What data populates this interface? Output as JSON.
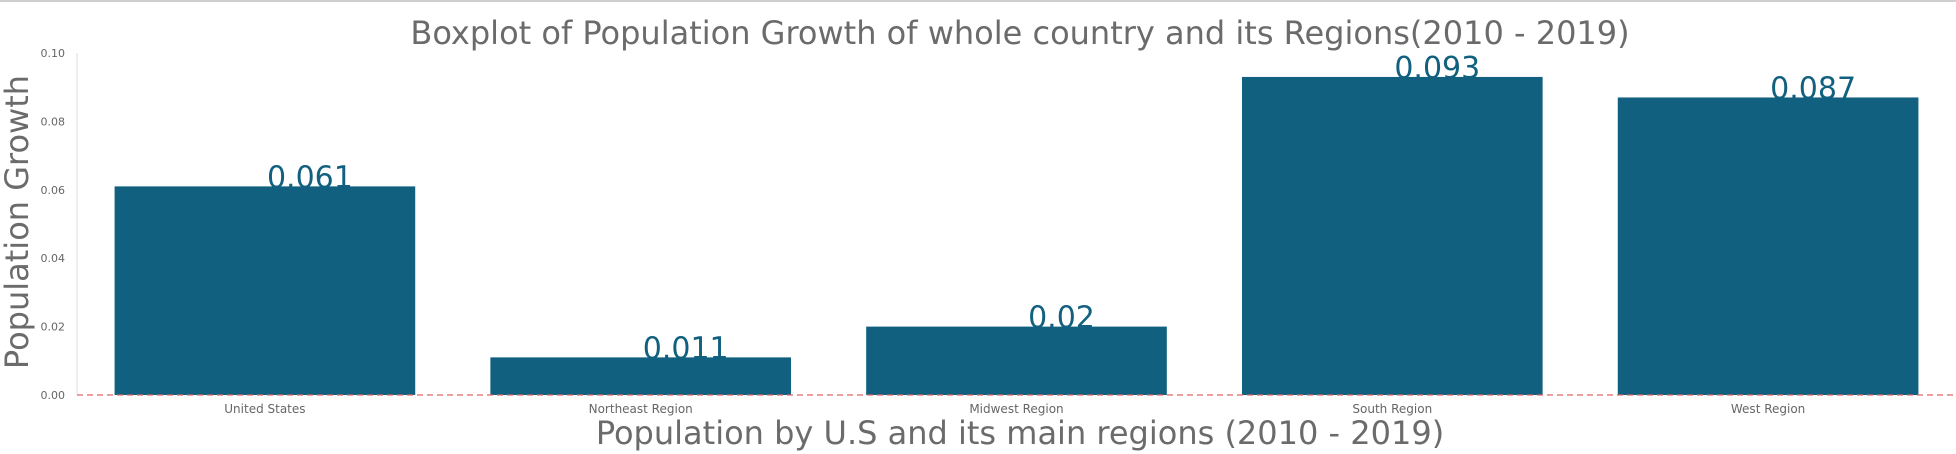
{
  "chart_data": {
    "type": "bar",
    "title": "Boxplot of Population Growth of whole country and its Regions(2010 - 2019)",
    "xlabel": "Population by U.S and its main regions (2010 - 2019)",
    "ylabel": "Population Growth",
    "categories": [
      "United States",
      "Northeast Region",
      "Midwest Region",
      "South Region",
      "West Region"
    ],
    "values": [
      0.061,
      0.011,
      0.02,
      0.093,
      0.087
    ],
    "data_labels": [
      "0.061",
      "0.011",
      "0.02",
      "0.093",
      "0.087"
    ],
    "ylim": [
      0,
      0.1
    ],
    "yticks": [
      0.0,
      0.02,
      0.04,
      0.06,
      0.08,
      0.1
    ],
    "ytick_labels": [
      "0.00",
      "0.02",
      "0.04",
      "0.06",
      "0.08",
      "0.10"
    ],
    "grid": false,
    "baseline_value": 0,
    "colors": {
      "bar": "#12607f",
      "data_label": "#12607f",
      "baseline": "#e06666",
      "text": "#6b6b6b",
      "axis": "#dddddd"
    }
  }
}
